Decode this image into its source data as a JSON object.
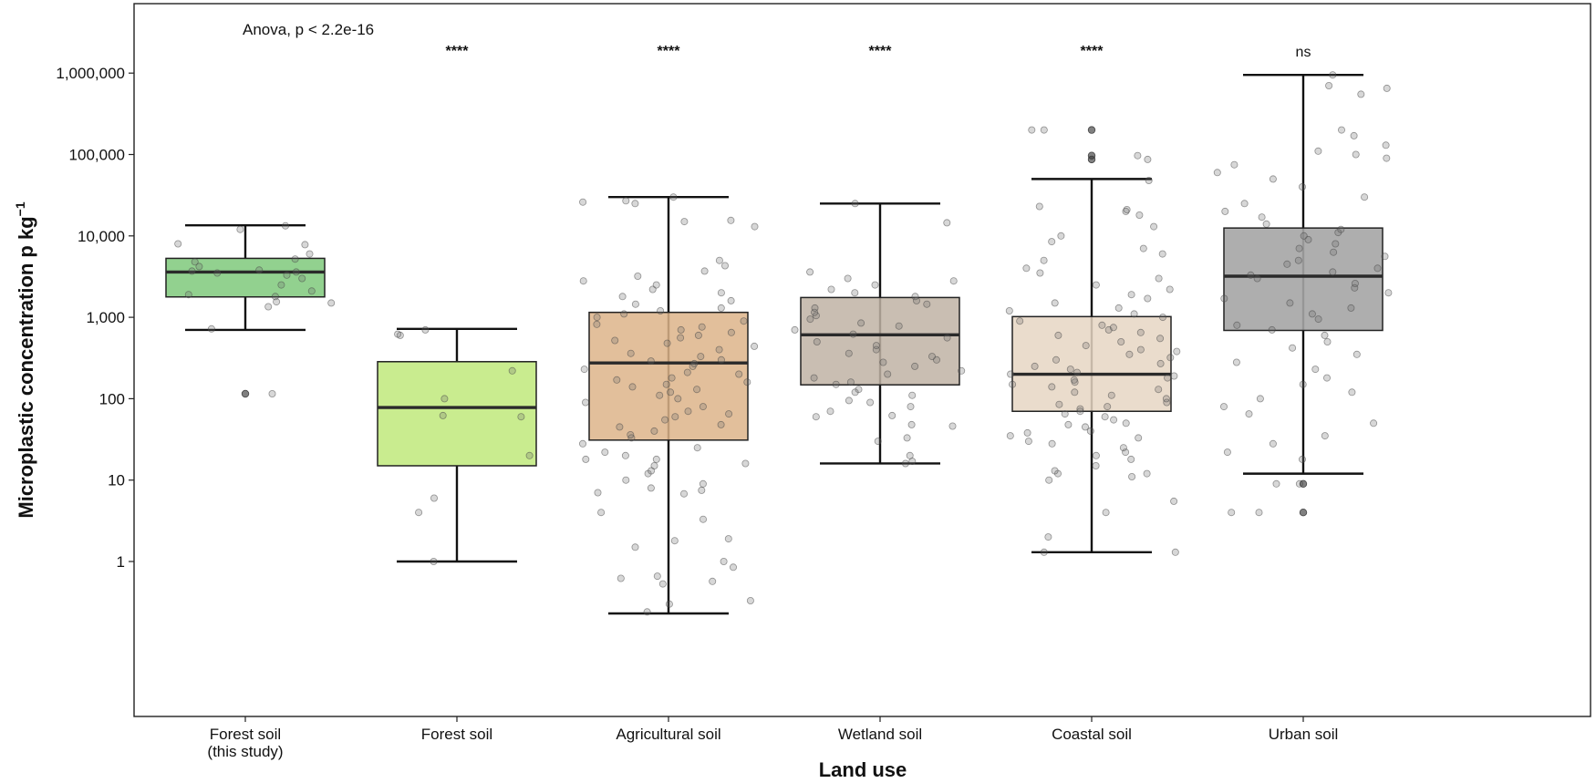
{
  "chart_data": {
    "type": "boxplot",
    "title": "",
    "xlabel": "Land use",
    "ylabel": "Microplastic concentration p kg",
    "ylabel_superscript": "−1",
    "y_scale": "log10",
    "ylim": [
      0.15,
      5000000
    ],
    "y_ticks": [
      1,
      10,
      100,
      1000,
      10000,
      100000,
      1000000
    ],
    "y_tick_labels": [
      "1",
      "10",
      "100",
      "1,000",
      "10,000",
      "100,000",
      "1,000,000"
    ],
    "grid": false,
    "legend": "none",
    "annotation": "Anova, p < 2.2e-16",
    "categories": [
      {
        "label": "Forest soil",
        "label2": "(this study)",
        "color": "#92d18f",
        "box_alpha": 1.0,
        "whisker_low": 700,
        "q1": 1780,
        "median": 3600,
        "q3": 5300,
        "whisker_high": 13500,
        "significance": "",
        "outliers": [
          115
        ],
        "points": [
          115,
          720,
          1350,
          1500,
          1550,
          1800,
          1900,
          2100,
          2500,
          3000,
          3300,
          3500,
          3600,
          3700,
          3800,
          4200,
          4800,
          5200,
          6000,
          7800,
          8000,
          12000,
          13300
        ]
      },
      {
        "label": "Forest soil",
        "label2": "",
        "color": "#c9ec8f",
        "box_alpha": 1.0,
        "whisker_low": 1,
        "q1": 15,
        "median": 78,
        "q3": 285,
        "whisker_high": 720,
        "significance": "****",
        "outliers": [],
        "points": [
          1,
          4,
          6,
          20,
          60,
          62,
          100,
          220,
          600,
          620,
          700
        ]
      },
      {
        "label": "Agricultural soil",
        "label2": "",
        "color": "#ddb48a",
        "box_alpha": 0.85,
        "whisker_low": 0.23,
        "q1": 31,
        "median": 275,
        "q3": 1150,
        "whisker_high": 30000,
        "significance": "****",
        "outliers": [],
        "points": [
          0.24,
          0.3,
          0.33,
          0.53,
          0.57,
          0.62,
          0.66,
          0.85,
          1.0,
          1.5,
          1.8,
          1.9,
          3.3,
          4.0,
          6.8,
          7.0,
          7.5,
          8.0,
          9.0,
          10,
          12,
          13,
          15,
          16,
          18,
          18,
          20,
          22,
          25,
          28,
          33,
          36,
          40,
          45,
          48,
          55,
          60,
          65,
          70,
          80,
          90,
          100,
          110,
          120,
          130,
          140,
          150,
          160,
          170,
          180,
          200,
          210,
          230,
          250,
          270,
          290,
          300,
          330,
          360,
          400,
          440,
          480,
          520,
          560,
          600,
          650,
          700,
          760,
          820,
          900,
          1000,
          1100,
          1200,
          1300,
          1450,
          1600,
          1800,
          2000,
          2200,
          2500,
          2800,
          3200,
          3700,
          4300,
          5000,
          13000,
          15000,
          15500,
          25000,
          26000,
          27000,
          30000
        ]
      },
      {
        "label": "Wetland soil",
        "label2": "",
        "color": "#bfb3a4",
        "box_alpha": 0.85,
        "whisker_low": 16,
        "q1": 148,
        "median": 610,
        "q3": 1750,
        "whisker_high": 25000,
        "significance": "****",
        "outliers": [],
        "points": [
          16,
          17,
          20,
          30,
          33,
          46,
          48,
          60,
          62,
          70,
          80,
          90,
          95,
          110,
          120,
          130,
          150,
          160,
          180,
          200,
          220,
          250,
          280,
          300,
          330,
          360,
          400,
          450,
          500,
          560,
          620,
          700,
          780,
          850,
          950,
          1050,
          1150,
          1300,
          1450,
          1600,
          1800,
          2000,
          2200,
          2500,
          2800,
          3000,
          3600,
          14500,
          25000
        ]
      },
      {
        "label": "Coastal soil",
        "label2": "",
        "color": "#e6d6c3",
        "box_alpha": 0.85,
        "whisker_low": 1.3,
        "q1": 70,
        "median": 200,
        "q3": 1020,
        "whisker_high": 50000,
        "significance": "****",
        "outliers": [
          87000,
          97000,
          200000
        ],
        "points": [
          1.3,
          1.3,
          2.0,
          4.0,
          5.5,
          10,
          11,
          12,
          12,
          13,
          15,
          18,
          20,
          22,
          25,
          28,
          30,
          33,
          35,
          38,
          40,
          45,
          48,
          50,
          55,
          60,
          65,
          70,
          75,
          80,
          85,
          90,
          100,
          110,
          120,
          130,
          140,
          150,
          160,
          170,
          180,
          190,
          200,
          210,
          230,
          250,
          270,
          300,
          320,
          350,
          380,
          400,
          450,
          500,
          550,
          600,
          650,
          700,
          750,
          800,
          900,
          1000,
          1100,
          1200,
          1300,
          1500,
          1700,
          1900,
          2200,
          2500,
          3000,
          3500,
          4000,
          5000,
          6000,
          7000,
          8500,
          10000,
          13000,
          18000,
          20000,
          21000,
          23000,
          48000,
          87000,
          97000,
          200000,
          200000
        ]
      },
      {
        "label": "Urban soil",
        "label2": "",
        "color": "#a5a5a5",
        "box_alpha": 0.9,
        "whisker_low": 12,
        "q1": 690,
        "median": 3200,
        "q3": 12500,
        "whisker_high": 950000,
        "significance": "ns",
        "outliers": [
          4,
          9
        ],
        "points": [
          4,
          4,
          9,
          9,
          18,
          22,
          28,
          35,
          50,
          65,
          80,
          100,
          120,
          150,
          180,
          230,
          280,
          350,
          420,
          500,
          600,
          700,
          800,
          950,
          1100,
          1300,
          1500,
          1700,
          2000,
          2300,
          2600,
          3000,
          3300,
          3600,
          4000,
          4500,
          5000,
          5600,
          6300,
          7000,
          8000,
          9000,
          10000,
          11000,
          12000,
          14000,
          17000,
          20000,
          25000,
          30000,
          40000,
          50000,
          60000,
          75000,
          90000,
          100000,
          110000,
          130000,
          170000,
          200000,
          550000,
          650000,
          700000,
          950000
        ]
      }
    ]
  }
}
